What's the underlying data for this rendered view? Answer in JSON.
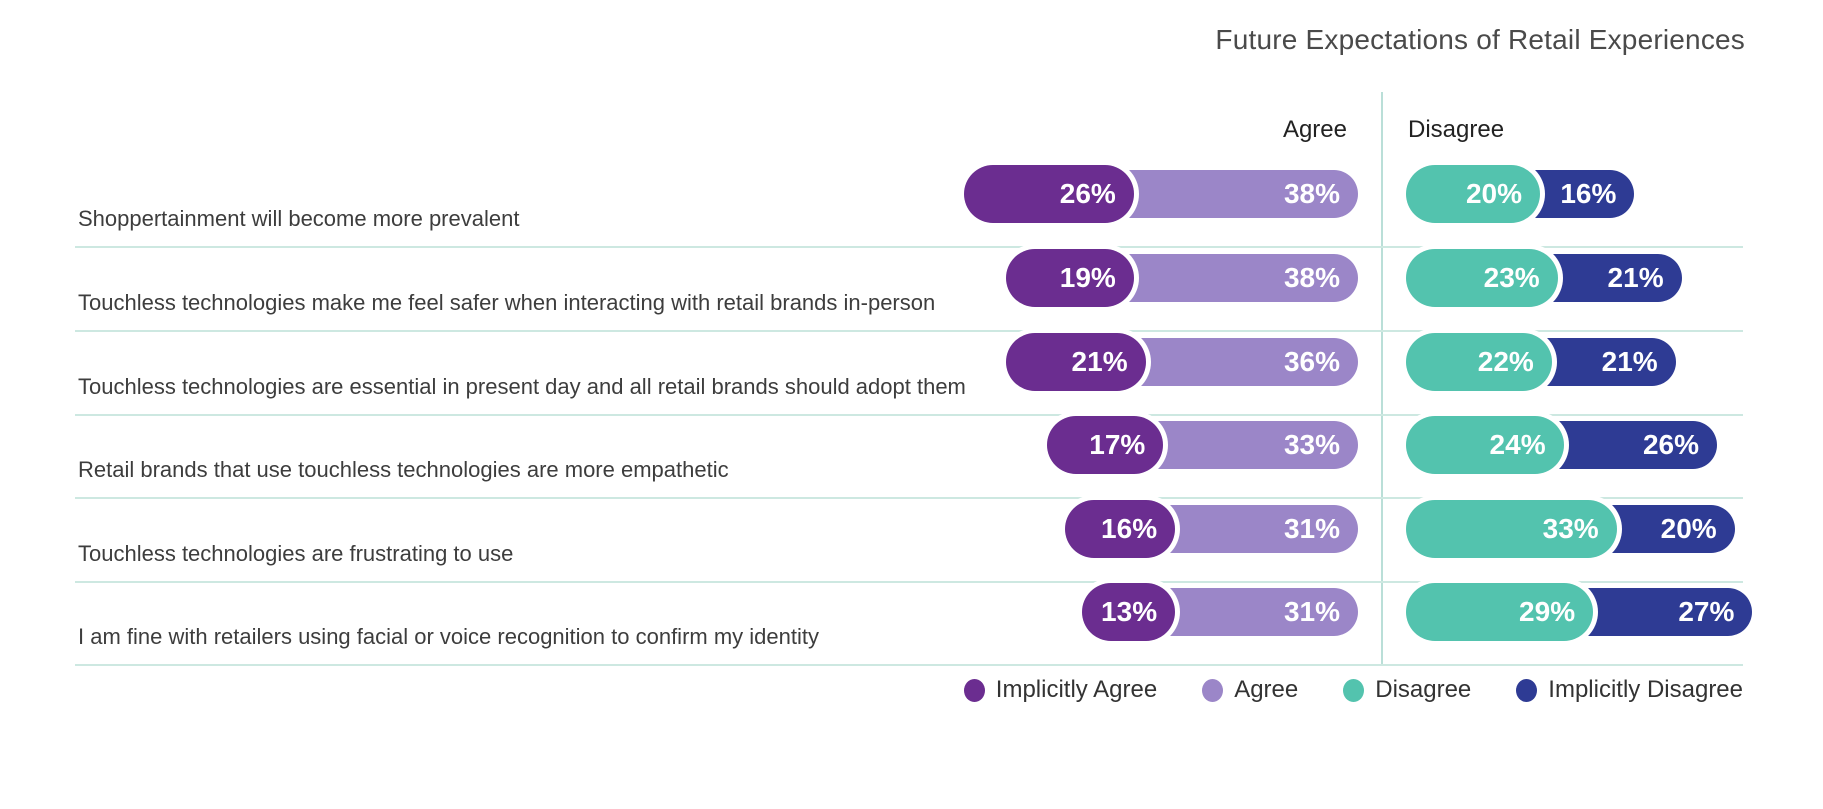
{
  "title": "Future Expectations of Retail Experiences",
  "columns": {
    "agree": "Agree",
    "disagree": "Disagree"
  },
  "colors": {
    "implicitly_agree": "#6B2D90",
    "agree": "#9B86C8",
    "disagree": "#53C3AE",
    "implicitly_disagree": "#2E3B94",
    "separator": "#cde8e1",
    "divider": "#badfd8",
    "title_text": "#4a4a4a",
    "label_text": "#3d3d3d",
    "value_text": "#ffffff"
  },
  "legend": [
    {
      "label": "Implicitly Agree",
      "color_key": "implicitly_agree"
    },
    {
      "label": "Agree",
      "color_key": "agree"
    },
    {
      "label": "Disagree",
      "color_key": "disagree"
    },
    {
      "label": "Implicitly Disagree",
      "color_key": "implicitly_disagree"
    }
  ],
  "chart_data": {
    "type": "bar",
    "orientation": "horizontal",
    "unit": "%",
    "title": "Future Expectations of Retail Experiences",
    "legend_position": "bottom",
    "column_groups": {
      "agree": [
        "Implicitly Agree",
        "Agree"
      ],
      "disagree": [
        "Disagree",
        "Implicitly Disagree"
      ]
    },
    "categories": [
      "Shoppertainment will become more prevalent",
      "Touchless technologies make me feel safer when interacting with retail brands in-person",
      "Touchless technologies are essential in present day and all retail brands should adopt them",
      "Retail brands that use touchless technologies are more empathetic",
      "Touchless technologies are frustrating to use",
      "I am fine with retailers using facial or voice recognition to confirm my identity"
    ],
    "series": [
      {
        "name": "Implicitly Agree",
        "color_key": "implicitly_agree",
        "values": [
          26,
          19,
          21,
          17,
          16,
          13
        ]
      },
      {
        "name": "Agree",
        "color_key": "agree",
        "values": [
          38,
          38,
          36,
          33,
          31,
          31
        ]
      },
      {
        "name": "Disagree",
        "color_key": "disagree",
        "values": [
          20,
          23,
          22,
          24,
          33,
          29
        ]
      },
      {
        "name": "Implicitly Disagree",
        "color_key": "implicitly_disagree",
        "values": [
          16,
          21,
          21,
          26,
          20,
          27
        ]
      }
    ]
  }
}
